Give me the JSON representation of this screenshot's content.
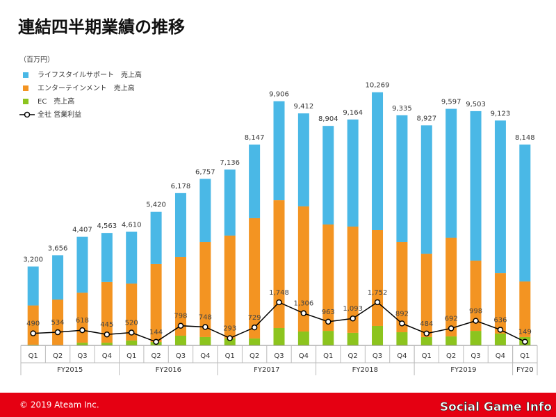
{
  "chart_data": {
    "type": "stacked_bar_line",
    "title": "連結四半期業績の推移",
    "unit_label": "（百万円）",
    "categories": [
      "Q1",
      "Q2",
      "Q3",
      "Q4",
      "Q1",
      "Q2",
      "Q3",
      "Q4",
      "Q1",
      "Q2",
      "Q3",
      "Q4",
      "Q1",
      "Q2",
      "Q3",
      "Q4",
      "Q1",
      "Q2",
      "Q3",
      "Q4",
      "Q1"
    ],
    "x_groups": [
      {
        "label": "FY2015",
        "size": 4
      },
      {
        "label": "FY2016",
        "size": 4
      },
      {
        "label": "FY2017",
        "size": 4
      },
      {
        "label": "FY2018",
        "size": 4
      },
      {
        "label": "FY2019",
        "size": 4
      },
      {
        "label": "FY20",
        "size": 1
      }
    ],
    "series": [
      {
        "name": "ライフスタイルサポート　売上高",
        "color": "#4ab8e6",
        "type": "bar",
        "values": [
          1580,
          1796,
          2267,
          1993,
          2100,
          2120,
          2598,
          2557,
          2681,
          2987,
          4016,
          3772,
          3999,
          4344,
          5589,
          5135,
          5207,
          5227,
          6063,
          6193,
          5553
        ]
      },
      {
        "name": "エンターテインメント　売上高",
        "color": "#f39422",
        "type": "bar",
        "values": [
          1590,
          1840,
          2030,
          2460,
          2310,
          3160,
          3185,
          3860,
          4175,
          4880,
          5185,
          5075,
          4315,
          4310,
          3890,
          3665,
          3380,
          4005,
          2850,
          2450,
          2255
        ]
      },
      {
        "name": "EC　売上高",
        "color": "#8cc41e",
        "type": "bar",
        "values": [
          30,
          20,
          110,
          110,
          200,
          140,
          395,
          340,
          280,
          280,
          705,
          565,
          590,
          510,
          790,
          535,
          340,
          365,
          590,
          480,
          340
        ]
      },
      {
        "name": "全社 営業利益",
        "color": "#000000",
        "type": "line",
        "values": [
          490,
          534,
          618,
          445,
          520,
          144,
          798,
          748,
          293,
          729,
          1748,
          1306,
          963,
          1093,
          1752,
          892,
          484,
          692,
          998,
          636,
          149
        ],
        "value_labels": [
          "490",
          "534",
          "618",
          "445",
          "520",
          "144",
          "798",
          "748",
          "293",
          "729",
          "1,748",
          "1,306",
          "963",
          "1,093",
          "1,752",
          "892",
          "484",
          "692",
          "998",
          "636",
          "149"
        ]
      }
    ],
    "totals": [
      3200,
      3656,
      4407,
      4563,
      4610,
      5420,
      6178,
      6757,
      7136,
      8147,
      9906,
      9412,
      8904,
      9164,
      10269,
      9335,
      8927,
      9597,
      9503,
      9123,
      8148
    ],
    "total_labels": [
      "3,200",
      "3,656",
      "4,407",
      "4,563",
      "4,610",
      "5,420",
      "6,178",
      "6,757",
      "7,136",
      "8,147",
      "9,906",
      "9,412",
      "8,904",
      "9,164",
      "10,269",
      "9,335",
      "8,927",
      "9,597",
      "9,503",
      "9,123",
      "8,148"
    ],
    "ylim": [
      0,
      10600
    ],
    "grid": false
  },
  "footer": {
    "copyright": "© 2019 Ateam Inc.",
    "watermark": "Social Game Info"
  }
}
